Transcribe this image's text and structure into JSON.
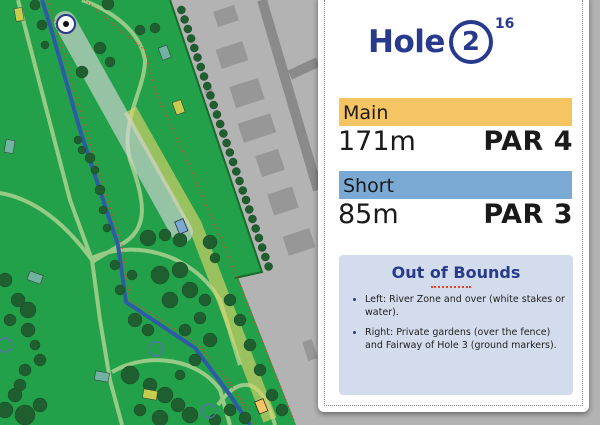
{
  "hole": {
    "word": "Hole",
    "number": "2",
    "superscript": "16"
  },
  "tees": [
    {
      "label": "Main",
      "distance": "171m",
      "par": "PAR 4",
      "color": "#f5c563"
    },
    {
      "label": "Short",
      "distance": "85m",
      "par": "PAR 3",
      "color": "#7aaad3"
    }
  ],
  "out_of_bounds": {
    "title": "Out of Bounds",
    "items": [
      "Left: River Zone and over (white stakes or water).",
      "Right: Private gardens (over the fence) and Fairway of Hole 3 (ground markers)."
    ]
  },
  "map": {
    "colors": {
      "grass": "#23a14a",
      "trees": "#1f5e2e",
      "river": "#2f5aa6",
      "paths": "#a4cf8e",
      "urban": "#b3b3b3",
      "buildings": "#979797",
      "oob_line": "#e3402b",
      "main_tee": "#f5c563",
      "short_tee": "#7aaad3",
      "basket": "#283a8c"
    },
    "icons": [
      "basket-icon",
      "tee-pad-main",
      "tee-pad-short",
      "tree-icon",
      "out-of-bounds-line"
    ]
  }
}
